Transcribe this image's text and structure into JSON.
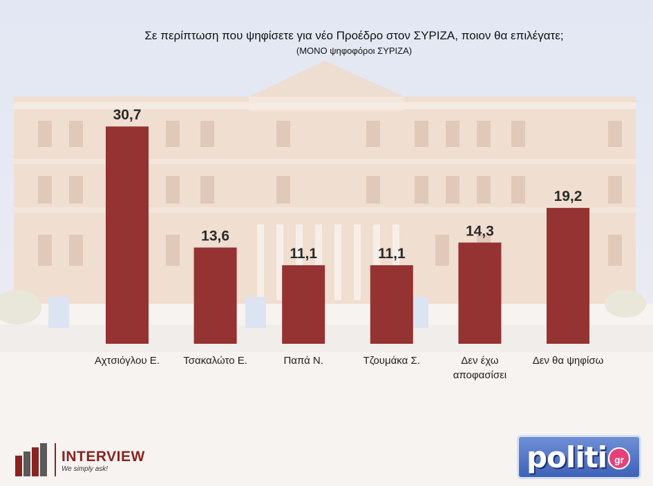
{
  "chart_data": {
    "type": "bar",
    "title": "Σε περίπτωση που ψηφίσετε για νέο Προέδρο στον ΣΥΡΙΖΑ, ποιον θα επιλέγατε;",
    "subtitle": "(ΜΟΝΟ ψηφοφόροι ΣΥΡΙΖΑ)",
    "categories": [
      [
        "Αχτσιόγλου Ε."
      ],
      [
        "Τσακαλώτο Ε."
      ],
      [
        "Παπά Ν."
      ],
      [
        "Τζουμάκα Σ."
      ],
      [
        "Δεν έχω",
        "αποφασίσει"
      ],
      [
        "Δεν θα ψηφίσω"
      ]
    ],
    "values": [
      30.7,
      13.6,
      11.1,
      11.1,
      14.3,
      19.2
    ],
    "value_labels": [
      "30,7",
      "13,6",
      "11,1",
      "11,1",
      "14,3",
      "19,2"
    ],
    "ylim": [
      0,
      31.5
    ],
    "bar_color": "#943332",
    "xlabel": "",
    "ylabel": ""
  },
  "branding": {
    "left_name": "INTERVIEW",
    "left_tagline": "We simply ask!",
    "right_name": "politic",
    "right_badge": "gr"
  }
}
